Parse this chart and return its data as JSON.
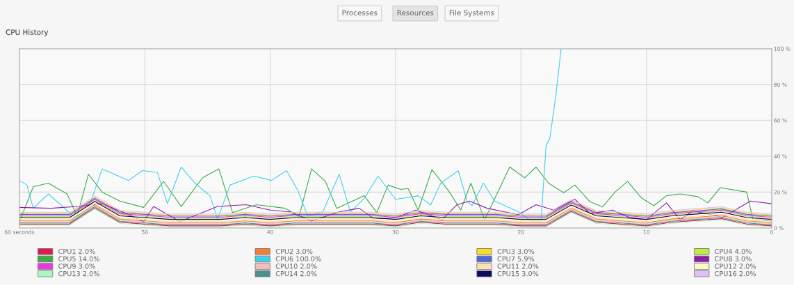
{
  "chart_data": {
    "type": "line",
    "title": "CPU History",
    "annotations": [
      "Processes",
      "Resources",
      "File Systems"
    ],
    "x": [
      60,
      58,
      56,
      54,
      52,
      50,
      48,
      46,
      44,
      42,
      40,
      38,
      36,
      34,
      32,
      30,
      28,
      26,
      24,
      22,
      20,
      18,
      16,
      14,
      12,
      10,
      8,
      6,
      4,
      2,
      0
    ],
    "xlim": [
      60,
      0
    ],
    "xticks": [
      {
        "value": 60,
        "label": "60 seconds"
      },
      50,
      40,
      30,
      20,
      10,
      0
    ],
    "ylim": [
      0,
      100
    ],
    "yticks": [
      {
        "value": 0,
        "label": "0 %"
      },
      {
        "value": 20,
        "label": "20 %"
      },
      {
        "value": 40,
        "label": "40 %"
      },
      {
        "value": 60,
        "label": "60 %"
      },
      {
        "value": 80,
        "label": "80 %"
      },
      {
        "value": 100,
        "label": "100 %"
      }
    ],
    "grid": true,
    "legend": "bottom",
    "marker": "none",
    "line_style": "solid",
    "series": [
      {
        "name": "CPU1 2.0%",
        "color": "#e01b4c",
        "values": [
          2.2,
          2.2,
          2.2,
          11.2,
          3.2,
          2.2,
          1.2,
          1.2,
          1.2,
          2.2,
          1.2,
          2.2,
          2.2,
          2.2,
          2.2,
          1.2,
          3.2,
          2.2,
          2.2,
          2.2,
          1.2,
          1.2,
          9.2,
          3.2,
          2.2,
          1.2,
          3.2,
          4.2,
          5.2,
          2.2,
          1.2
        ]
      },
      {
        "name": "CPU2 3.0%",
        "color": "#f57f30",
        "values": [
          4,
          4,
          4,
          13,
          5,
          4,
          3,
          3,
          3,
          4,
          3,
          4,
          4,
          4,
          4,
          3,
          5,
          4,
          4,
          4,
          3,
          3,
          11,
          5,
          4,
          3,
          5,
          6,
          7,
          4,
          3
        ]
      },
      {
        "name": "CPU3 3.0%",
        "color": "#f9de20",
        "values": [
          8.2,
          8.2,
          8.2,
          17.2,
          9.2,
          8.2,
          7.2,
          7.2,
          7.2,
          8.2,
          7.2,
          8.2,
          8.2,
          8.2,
          8.2,
          7.2,
          9.2,
          8.2,
          8.2,
          8.2,
          7.2,
          7.2,
          15.2,
          9.2,
          8.2,
          7.2,
          9.2,
          10.2,
          11.2,
          8.2,
          7.2
        ]
      },
      {
        "name": "CPU4 4.0%",
        "color": "#c0ee40",
        "values": [
          6.4,
          6.4,
          6.4,
          15.4,
          7.4,
          6.4,
          5.4,
          5.4,
          5.4,
          6.4,
          5.4,
          6.4,
          6.4,
          6.4,
          6.4,
          5.4,
          7.4,
          6.4,
          6.4,
          6.4,
          5.4,
          5.4,
          13.4,
          7.4,
          6.4,
          5.4,
          7.4,
          8.4,
          9.4,
          6.4,
          5.4
        ]
      },
      {
        "name": "CPU5 14.0%",
        "color": "#3cab49",
        "x": [
          60,
          58.9,
          57.7,
          56.2,
          55.4,
          54.5,
          53.4,
          52,
          50.1,
          48.5,
          47.1,
          45.4,
          44.1,
          43,
          41.1,
          38.8,
          37.7,
          36.7,
          35.6,
          34.7,
          32.5,
          31.5,
          30.6,
          29.6,
          29,
          28.2,
          27.1,
          25.8,
          24.8,
          24,
          22.9,
          20.9,
          19.7,
          18.8,
          17.8,
          16.6,
          15.7,
          14.5,
          13.5,
          12.5,
          11.5,
          10.4,
          9.4,
          8.4,
          7.3,
          5.9,
          5.1,
          4.1,
          2,
          1.5,
          0
        ],
        "values": [
          3.6,
          23,
          25,
          19,
          6.5,
          30,
          20,
          15,
          11.5,
          26,
          12,
          28,
          33,
          8.6,
          13,
          11,
          6.5,
          33,
          26,
          11,
          18,
          8.6,
          24,
          21.5,
          22,
          10,
          32.5,
          21,
          10,
          25,
          4.6,
          34,
          28,
          34,
          25,
          19.7,
          24,
          14.6,
          11.8,
          20,
          26,
          16.8,
          12.5,
          18,
          19,
          17.5,
          14,
          22.5,
          20,
          4.6,
          4
        ]
      },
      {
        "name": "CPU6 100.0%",
        "color": "#40d0ee",
        "x": [
          60,
          59.4,
          58.9,
          57.7,
          55.6,
          54.6,
          53.4,
          51.3,
          50.2,
          49,
          48.2,
          47.1,
          46,
          44.8,
          44.2,
          43.2,
          41.3,
          39.9,
          38.7,
          37.8,
          37,
          35.8,
          34.5,
          33.6,
          32.5,
          31.4,
          30,
          28.2,
          27.2,
          26.4,
          25,
          24.3,
          23.9,
          23,
          22.1,
          20.2,
          19.2,
          18.4,
          18,
          17.7,
          17.2,
          16.8,
          0
        ],
        "values": [
          26.5,
          24,
          11,
          19,
          6,
          9,
          33,
          26.5,
          32,
          31,
          13.6,
          34,
          25,
          18,
          5,
          24,
          29,
          26.5,
          32,
          21,
          6.5,
          9,
          30,
          9,
          16.5,
          29,
          16,
          18,
          13,
          25,
          32,
          15,
          12.5,
          25,
          15,
          9,
          4,
          4,
          46,
          50,
          75,
          100,
          100
        ]
      },
      {
        "name": "CPU7 5.9%",
        "color": "#4a6ad8",
        "values": [
          7.6,
          7.6,
          7.6,
          16.6,
          8.6,
          7.6,
          6.6,
          6.6,
          6.6,
          7.6,
          6.6,
          7.6,
          7.6,
          7.6,
          7.6,
          6.6,
          8.6,
          7.6,
          7.6,
          7.6,
          6.6,
          6.6,
          14.6,
          8.6,
          7.6,
          6.6,
          8.6,
          9.6,
          10.6,
          7.6,
          6.6
        ]
      },
      {
        "name": "CPU8 3.0%",
        "color": "#8e1ea8",
        "x": [
          60,
          57.5,
          55.4,
          53.4,
          51.8,
          50.1,
          49.3,
          47.2,
          44.2,
          41.9,
          40,
          38.4,
          36.7,
          34.5,
          32.9,
          31.7,
          30,
          28.4,
          26.3,
          25.1,
          24.1,
          22.7,
          21.3,
          20.2,
          18.8,
          17.4,
          15.7,
          14.5,
          12.7,
          11.4,
          10,
          8.4,
          7.3,
          6.3,
          5.3,
          3.9,
          1.7,
          0
        ],
        "values": [
          11.5,
          11,
          12,
          13.6,
          9,
          3.6,
          12,
          3.6,
          12,
          13,
          10,
          9,
          4,
          9,
          11,
          5,
          5.7,
          10,
          4.6,
          13,
          15,
          11,
          9,
          7.5,
          13,
          10,
          16,
          8,
          10,
          6,
          4.6,
          14,
          4.6,
          9.6,
          8,
          6,
          15,
          13.5
        ]
      },
      {
        "name": "CPU9 3.0%",
        "color": "#e83ae0",
        "values": [
          7,
          7,
          7,
          16,
          8,
          7,
          6,
          6,
          6,
          7,
          6,
          7,
          7,
          7,
          7,
          6,
          8,
          7,
          7,
          7,
          6,
          6,
          14,
          8,
          7,
          6,
          8,
          9,
          10,
          7,
          6
        ]
      },
      {
        "name": "CPU10 2.0%",
        "color": "#f4bcbc",
        "values": [
          3.4,
          3.4,
          3.4,
          12.4,
          4.4,
          3.4,
          2.4,
          2.4,
          2.4,
          3.4,
          2.4,
          3.4,
          3.4,
          3.4,
          3.4,
          2.4,
          4.4,
          3.4,
          3.4,
          3.4,
          2.4,
          2.4,
          10.4,
          4.4,
          3.4,
          2.4,
          4.4,
          5.4,
          6.4,
          3.4,
          2.4
        ]
      },
      {
        "name": "CPU11 2.0%",
        "color": "#fde0bc",
        "values": [
          4.6,
          4.6,
          4.6,
          13.6,
          5.6,
          4.6,
          3.6,
          3.6,
          3.6,
          4.6,
          3.6,
          4.6,
          4.6,
          4.6,
          4.6,
          3.6,
          5.6,
          4.6,
          4.6,
          4.6,
          3.6,
          3.6,
          11.6,
          5.6,
          4.6,
          3.6,
          5.6,
          6.6,
          7.6,
          4.6,
          3.6
        ]
      },
      {
        "name": "CPU12 2.0%",
        "color": "#fdf8c8",
        "values": [
          5.2,
          5.2,
          5.2,
          14.2,
          6.2,
          5.2,
          4.2,
          4.2,
          4.2,
          5.2,
          4.2,
          5.2,
          5.2,
          5.2,
          5.2,
          4.2,
          6.2,
          5.2,
          5.2,
          5.2,
          4.2,
          4.2,
          12.2,
          6.2,
          5.2,
          4.2,
          6.2,
          7.2,
          8.2,
          5.2,
          4.2
        ]
      },
      {
        "name": "CPU13 2.0%",
        "color": "#a8f8c0",
        "values": [
          1.6,
          1.6,
          1.6,
          10.6,
          2.6,
          1.6,
          0.6,
          0.6,
          0.6,
          1.6,
          0.6,
          1.6,
          1.6,
          1.6,
          1.6,
          0.6,
          2.6,
          1.6,
          1.6,
          1.6,
          0.6,
          0.6,
          8.6,
          2.6,
          1.6,
          0.6,
          2.6,
          3.6,
          4.6,
          1.6,
          0.6
        ]
      },
      {
        "name": "CPU14 2.0%",
        "color": "#4a9090",
        "values": [
          2.8,
          2.8,
          2.8,
          11.8,
          3.8,
          2.8,
          1.8,
          1.8,
          1.8,
          2.8,
          1.8,
          2.8,
          2.8,
          2.8,
          2.8,
          1.8,
          3.8,
          2.8,
          2.8,
          2.8,
          1.8,
          1.8,
          9.8,
          3.8,
          2.8,
          1.8,
          3.8,
          4.8,
          5.8,
          2.8,
          1.8
        ]
      },
      {
        "name": "CPU15 3.0%",
        "color": "#0a0a60",
        "values": [
          5.8,
          5.8,
          5.8,
          14.8,
          6.8,
          5.8,
          4.8,
          4.8,
          4.8,
          5.8,
          4.8,
          5.8,
          5.8,
          5.8,
          5.8,
          4.8,
          6.8,
          5.8,
          5.8,
          5.8,
          4.8,
          4.8,
          12.8,
          6.8,
          5.8,
          4.8,
          6.8,
          7.8,
          8.8,
          5.8,
          4.8
        ]
      },
      {
        "name": "CPU16 2.0%",
        "color": "#e0c0f4",
        "values": [
          8.8,
          8.8,
          8.8,
          17.8,
          9.8,
          8.8,
          7.8,
          7.8,
          7.8,
          8.8,
          7.8,
          8.8,
          8.8,
          8.8,
          8.8,
          7.8,
          9.8,
          8.8,
          8.8,
          8.8,
          7.8,
          7.8,
          15.8,
          9.8,
          8.8,
          7.8,
          9.8,
          10.8,
          11.8,
          8.8,
          7.8
        ]
      }
    ]
  }
}
